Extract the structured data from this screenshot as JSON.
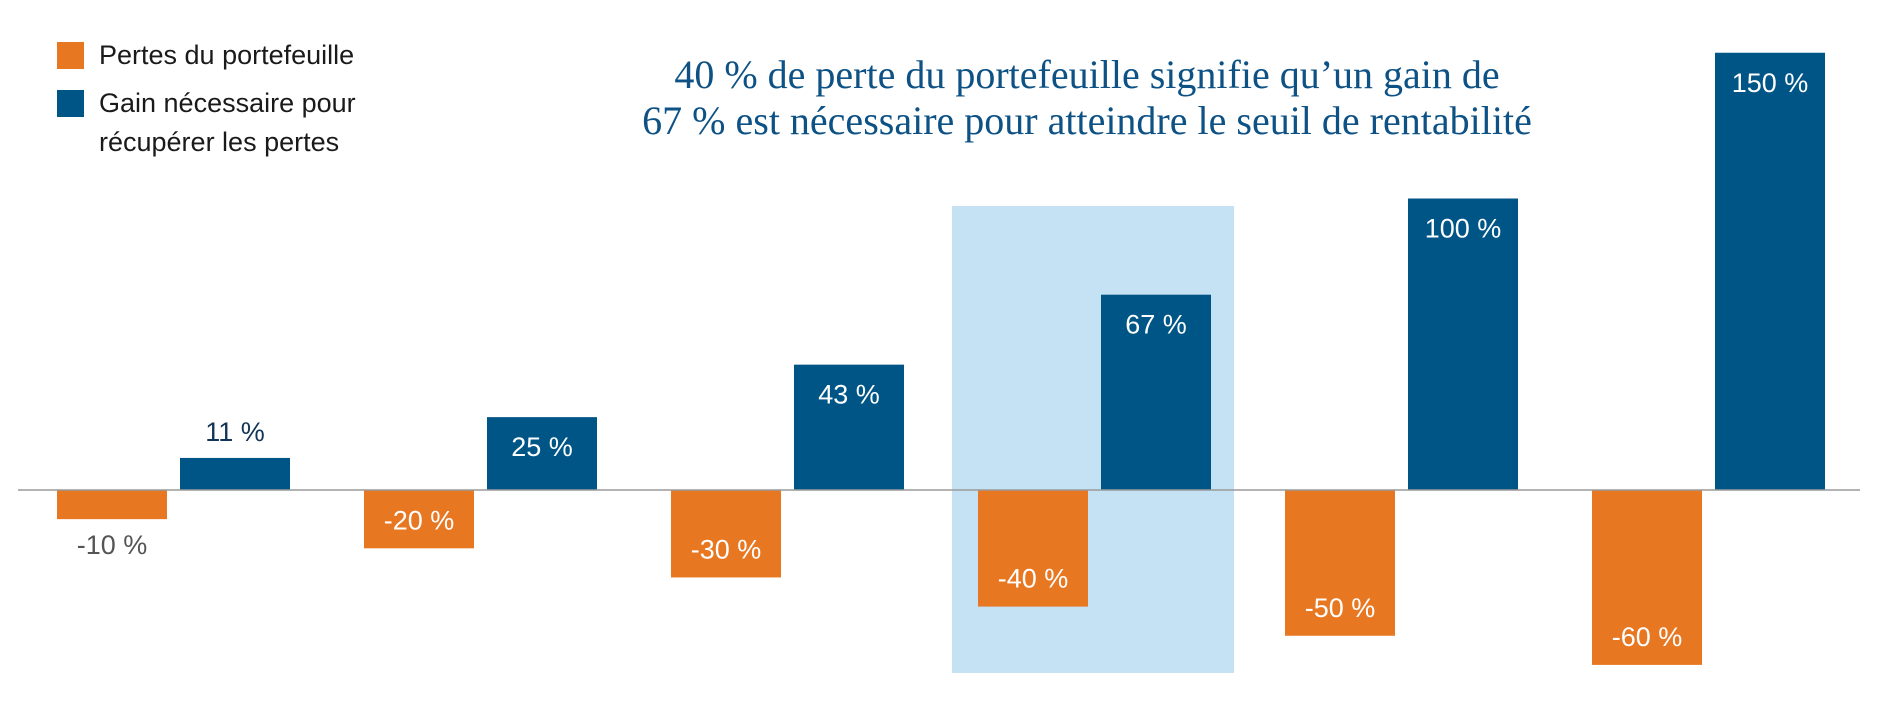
{
  "legend": {
    "losses_label": "Pertes du portefeuille",
    "gains_label_line1": "Gain nécessaire pour",
    "gains_label_line2": "récupérer les pertes"
  },
  "title_line1": "40 % de perte du portefeuille signifie qu’un gain de",
  "title_line2": "67 % est nécessaire pour atteindre le seuil de rentabilité",
  "colors": {
    "loss": "#e87722",
    "gain": "#005587",
    "highlight": "#c5e1f4",
    "title": "#0e5285",
    "axis": "#9a9a9a"
  },
  "chart_data": {
    "type": "bar",
    "ylim": [
      -60,
      150
    ],
    "highlight_group": 3,
    "series": [
      {
        "name": "Pertes du portefeuille",
        "values": [
          -10,
          -20,
          -30,
          -40,
          -50,
          -60
        ],
        "labels": [
          "-10 %",
          "-20 %",
          "-30 %",
          "-40 %",
          "-50 %",
          "-60 %"
        ]
      },
      {
        "name": "Gain nécessaire pour récupérer les pertes",
        "values": [
          11,
          25,
          43,
          67,
          100,
          150
        ],
        "labels": [
          "11 %",
          "25 %",
          "43 %",
          "67 %",
          "100 %",
          "150 %"
        ]
      }
    ]
  }
}
